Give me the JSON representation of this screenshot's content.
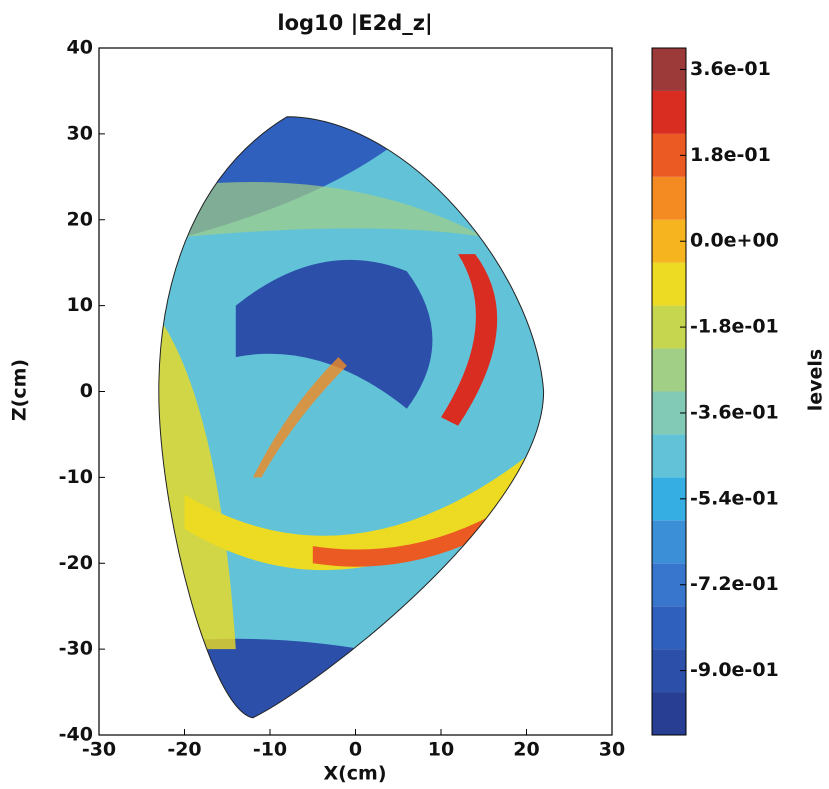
{
  "chart_data": {
    "type": "contourf",
    "title": "log10 |E2d_z|",
    "xlabel": "X(cm)",
    "ylabel": "Z(cm)",
    "xlim": [
      -30,
      30
    ],
    "ylim": [
      -40,
      40
    ],
    "xticks": [
      -30,
      -20,
      -10,
      0,
      10,
      20,
      30
    ],
    "yticks": [
      -40,
      -30,
      -20,
      -10,
      0,
      10,
      20,
      30,
      40
    ],
    "colorbar": {
      "label": "levels",
      "levels": [
        -1.035,
        -0.945,
        -0.855,
        -0.765,
        -0.675,
        -0.585,
        -0.495,
        -0.405,
        -0.315,
        -0.225,
        -0.135,
        -0.045,
        0.045,
        0.135,
        0.225,
        0.315,
        0.405
      ],
      "colors": [
        "#283e92",
        "#2c4faa",
        "#3060bd",
        "#3876cd",
        "#3a8fd7",
        "#35aee4",
        "#62c3d8",
        "#82cab6",
        "#a1cf86",
        "#c6d64f",
        "#ecdb22",
        "#f6b51f",
        "#f38a22",
        "#ec5a24",
        "#d92d22",
        "#9c3a3a"
      ],
      "ticks": [
        {
          "value": 0.36,
          "label": "3.6e-01"
        },
        {
          "value": 0.18,
          "label": "1.8e-01"
        },
        {
          "value": 0.0,
          "label": "0.0e+00"
        },
        {
          "value": -0.18,
          "label": "-1.8e-01"
        },
        {
          "value": -0.36,
          "label": "-3.6e-01"
        },
        {
          "value": -0.54,
          "label": "-5.4e-01"
        },
        {
          "value": -0.72,
          "label": "-7.2e-01"
        },
        {
          "value": -0.9,
          "label": "-9.0e-01"
        }
      ]
    }
  }
}
